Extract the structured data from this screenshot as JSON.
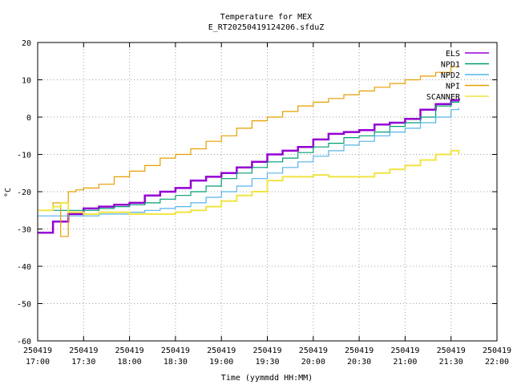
{
  "chart_data": {
    "type": "line",
    "title": "Temperature for MEX",
    "subtitle": "E_RT20250419124206.sfduZ",
    "xlabel": "Time (yymmdd HH:MM)",
    "ylabel": "°C",
    "ylim": [
      -60,
      20
    ],
    "yticks": [
      "-60",
      "-50",
      "-40",
      "-30",
      "-20",
      "-10",
      "0",
      "10",
      "20"
    ],
    "xlim": [
      "2025-04-19 17:00",
      "2025-04-19 22:00"
    ],
    "xticks": [
      {
        "date": "250419",
        "time": "17:00"
      },
      {
        "date": "250419",
        "time": "17:30"
      },
      {
        "date": "250419",
        "time": "18:00"
      },
      {
        "date": "250419",
        "time": "18:30"
      },
      {
        "date": "250419",
        "time": "19:00"
      },
      {
        "date": "250419",
        "time": "19:30"
      },
      {
        "date": "250419",
        "time": "20:00"
      },
      {
        "date": "250419",
        "time": "20:30"
      },
      {
        "date": "250419",
        "time": "21:00"
      },
      {
        "date": "250419",
        "time": "21:30"
      },
      {
        "date": "250419",
        "time": "22:00"
      }
    ],
    "grid": true,
    "legend_position": "top-right",
    "series": [
      {
        "name": "ELS",
        "color": "#9400d3",
        "x": [
          "17:00",
          "17:10",
          "17:20",
          "17:30",
          "17:40",
          "17:50",
          "18:00",
          "18:10",
          "18:20",
          "18:30",
          "18:40",
          "18:50",
          "19:00",
          "19:10",
          "19:20",
          "19:30",
          "19:40",
          "19:50",
          "20:00",
          "20:10",
          "20:20",
          "20:30",
          "20:40",
          "20:50",
          "21:00",
          "21:10",
          "21:20",
          "21:30",
          "21:35"
        ],
        "y": [
          -31,
          -28,
          -26,
          -24.5,
          -24,
          -23.5,
          -23,
          -21,
          -20,
          -19,
          -17,
          -16,
          -15,
          -13.5,
          -12,
          -10,
          -9,
          -8,
          -6,
          -4.5,
          -4,
          -3.5,
          -2,
          -1.5,
          -0.5,
          2,
          3.5,
          4.5,
          5
        ]
      },
      {
        "name": "NPD1",
        "color": "#009e73",
        "x": [
          "17:00",
          "17:30",
          "17:40",
          "17:50",
          "18:00",
          "18:10",
          "18:20",
          "18:30",
          "18:40",
          "18:50",
          "19:00",
          "19:10",
          "19:20",
          "19:30",
          "19:40",
          "19:50",
          "20:00",
          "20:10",
          "20:20",
          "20:30",
          "20:40",
          "20:50",
          "21:00",
          "21:10",
          "21:20",
          "21:30",
          "21:35"
        ],
        "y": [
          -25,
          -25,
          -24.5,
          -24,
          -23.5,
          -23,
          -22,
          -21,
          -20,
          -18.5,
          -16.5,
          -15,
          -13.5,
          -12,
          -11,
          -9.5,
          -8,
          -7,
          -5.5,
          -5,
          -4,
          -2.5,
          -1.5,
          0,
          3,
          4,
          4.5
        ]
      },
      {
        "name": "NPD2",
        "color": "#56b4e9",
        "x": [
          "17:00",
          "17:30",
          "17:40",
          "17:50",
          "18:00",
          "18:10",
          "18:20",
          "18:30",
          "18:40",
          "18:50",
          "19:00",
          "19:10",
          "19:20",
          "19:30",
          "19:40",
          "19:50",
          "20:00",
          "20:10",
          "20:20",
          "20:30",
          "20:40",
          "20:50",
          "21:00",
          "21:10",
          "21:20",
          "21:30",
          "21:35"
        ],
        "y": [
          -26.5,
          -26.5,
          -26,
          -26,
          -25.5,
          -25,
          -24.5,
          -24,
          -23,
          -21.5,
          -20,
          -18.5,
          -16.5,
          -15,
          -13.5,
          -12,
          -10.5,
          -9,
          -7.5,
          -6.5,
          -5,
          -4,
          -3,
          -1.5,
          0,
          2,
          2.5
        ]
      },
      {
        "name": "NPI",
        "color": "#e69f00",
        "x": [
          "17:00",
          "17:10",
          "17:15",
          "17:20",
          "17:25",
          "17:30",
          "17:40",
          "17:50",
          "18:00",
          "18:10",
          "18:20",
          "18:30",
          "18:40",
          "18:50",
          "19:00",
          "19:10",
          "19:20",
          "19:30",
          "19:40",
          "19:50",
          "20:00",
          "20:10",
          "20:20",
          "20:30",
          "20:40",
          "20:50",
          "21:00",
          "21:10",
          "21:20",
          "21:30",
          "21:35"
        ],
        "y": [
          -25,
          -23,
          -32,
          -20,
          -19.5,
          -19,
          -18,
          -16,
          -14.5,
          -13,
          -11,
          -10,
          -8.5,
          -6.5,
          -5,
          -3,
          -1,
          0,
          1.5,
          3,
          4,
          5,
          6,
          7,
          8,
          9,
          10,
          11,
          12,
          13.5,
          13.5
        ]
      },
      {
        "name": "SCANNER",
        "color": "#f0e442",
        "x": [
          "17:00",
          "17:10",
          "17:15",
          "17:20",
          "17:30",
          "17:40",
          "17:50",
          "18:00",
          "18:10",
          "18:20",
          "18:30",
          "18:40",
          "18:50",
          "19:00",
          "19:10",
          "19:20",
          "19:30",
          "19:40",
          "19:50",
          "20:00",
          "20:10",
          "20:20",
          "20:30",
          "20:40",
          "20:50",
          "21:00",
          "21:10",
          "21:20",
          "21:30",
          "21:35"
        ],
        "y": [
          -25,
          -24,
          -23,
          -25.5,
          -26,
          -25.5,
          -25.5,
          -26,
          -26,
          -26,
          -25.5,
          -25,
          -24,
          -22.5,
          -21,
          -20,
          -17,
          -16,
          -16,
          -15.5,
          -16,
          -16,
          -16,
          -15,
          -14,
          -13,
          -11.5,
          -10,
          -9,
          -10
        ]
      }
    ]
  }
}
